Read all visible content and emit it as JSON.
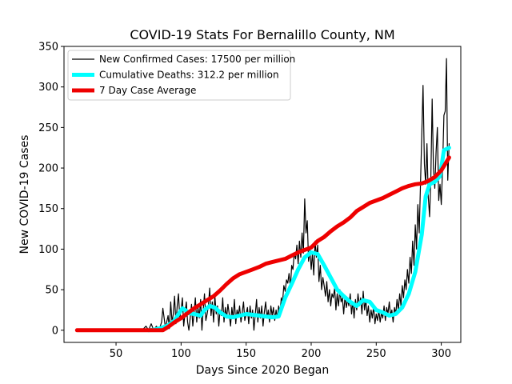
{
  "chart_data": {
    "type": "line",
    "title": "COVID-19 Stats For Bernalillo County, NM",
    "xlabel": "Days Since 2020 Began",
    "ylabel": "New COVID-19 Cases",
    "xlim": [
      10,
      315
    ],
    "ylim": [
      -15,
      350
    ],
    "xticks": [
      50,
      100,
      150,
      200,
      250,
      300
    ],
    "yticks": [
      0,
      50,
      100,
      150,
      200,
      250,
      300,
      350
    ],
    "legend_position": "upper-left",
    "grid": false,
    "series": [
      {
        "name": "New Confirmed Cases: 17500 per million",
        "color": "#000000",
        "style": "thin",
        "points": [
          [
            20,
            0
          ],
          [
            40,
            0
          ],
          [
            60,
            0
          ],
          [
            70,
            0
          ],
          [
            73,
            5
          ],
          [
            75,
            0
          ],
          [
            77,
            8
          ],
          [
            79,
            0
          ],
          [
            81,
            5
          ],
          [
            83,
            0
          ],
          [
            85,
            10
          ],
          [
            86,
            27
          ],
          [
            88,
            3
          ],
          [
            90,
            18
          ],
          [
            91,
            2
          ],
          [
            92,
            35
          ],
          [
            93,
            10
          ],
          [
            94,
            20
          ],
          [
            95,
            42
          ],
          [
            96,
            8
          ],
          [
            97,
            30
          ],
          [
            98,
            45
          ],
          [
            99,
            15
          ],
          [
            100,
            25
          ],
          [
            101,
            40
          ],
          [
            102,
            5
          ],
          [
            103,
            20
          ],
          [
            104,
            35
          ],
          [
            105,
            10
          ],
          [
            106,
            0
          ],
          [
            107,
            15
          ],
          [
            108,
            32
          ],
          [
            109,
            5
          ],
          [
            110,
            22
          ],
          [
            111,
            40
          ],
          [
            112,
            10
          ],
          [
            113,
            28
          ],
          [
            114,
            15
          ],
          [
            115,
            38
          ],
          [
            116,
            0
          ],
          [
            117,
            25
          ],
          [
            118,
            45
          ],
          [
            119,
            12
          ],
          [
            120,
            20
          ],
          [
            121,
            30
          ],
          [
            122,
            52
          ],
          [
            123,
            18
          ],
          [
            124,
            35
          ],
          [
            125,
            10
          ],
          [
            126,
            42
          ],
          [
            127,
            20
          ],
          [
            128,
            30
          ],
          [
            129,
            5
          ],
          [
            130,
            25
          ],
          [
            131,
            18
          ],
          [
            132,
            40
          ],
          [
            133,
            10
          ],
          [
            134,
            28
          ],
          [
            135,
            15
          ],
          [
            136,
            32
          ],
          [
            137,
            20
          ],
          [
            138,
            5
          ],
          [
            139,
            28
          ],
          [
            140,
            15
          ],
          [
            141,
            38
          ],
          [
            142,
            8
          ],
          [
            143,
            25
          ],
          [
            144,
            18
          ],
          [
            145,
            30
          ],
          [
            146,
            10
          ],
          [
            147,
            22
          ],
          [
            148,
            35
          ],
          [
            149,
            12
          ],
          [
            150,
            20
          ],
          [
            151,
            28
          ],
          [
            152,
            8
          ],
          [
            153,
            30
          ],
          [
            154,
            15
          ],
          [
            155,
            25
          ],
          [
            156,
            0
          ],
          [
            157,
            20
          ],
          [
            158,
            38
          ],
          [
            159,
            10
          ],
          [
            160,
            28
          ],
          [
            161,
            15
          ],
          [
            162,
            30
          ],
          [
            163,
            5
          ],
          [
            164,
            22
          ],
          [
            165,
            35
          ],
          [
            166,
            15
          ],
          [
            167,
            25
          ],
          [
            168,
            10
          ],
          [
            169,
            30
          ],
          [
            170,
            18
          ],
          [
            171,
            28
          ],
          [
            172,
            12
          ],
          [
            173,
            25
          ],
          [
            174,
            15
          ],
          [
            175,
            30
          ],
          [
            176,
            20
          ],
          [
            177,
            40
          ],
          [
            178,
            35
          ],
          [
            179,
            55
          ],
          [
            180,
            48
          ],
          [
            181,
            62
          ],
          [
            182,
            58
          ],
          [
            183,
            70
          ],
          [
            184,
            52
          ],
          [
            185,
            80
          ],
          [
            186,
            75
          ],
          [
            187,
            95
          ],
          [
            188,
            88
          ],
          [
            189,
            105
          ],
          [
            190,
            82
          ],
          [
            191,
            110
          ],
          [
            192,
            90
          ],
          [
            193,
            120
          ],
          [
            194,
            95
          ],
          [
            195,
            162
          ],
          [
            196,
            120
          ],
          [
            197,
            135
          ],
          [
            198,
            85
          ],
          [
            199,
            100
          ],
          [
            200,
            75
          ],
          [
            201,
            95
          ],
          [
            202,
            68
          ],
          [
            203,
            110
          ],
          [
            204,
            90
          ],
          [
            205,
            105
          ],
          [
            206,
            60
          ],
          [
            207,
            80
          ],
          [
            208,
            50
          ],
          [
            209,
            65
          ],
          [
            210,
            55
          ],
          [
            211,
            42
          ],
          [
            212,
            60
          ],
          [
            213,
            35
          ],
          [
            214,
            50
          ],
          [
            215,
            30
          ],
          [
            216,
            45
          ],
          [
            217,
            40
          ],
          [
            218,
            52
          ],
          [
            219,
            25
          ],
          [
            220,
            45
          ],
          [
            221,
            30
          ],
          [
            222,
            50
          ],
          [
            223,
            35
          ],
          [
            224,
            40
          ],
          [
            225,
            20
          ],
          [
            226,
            42
          ],
          [
            227,
            28
          ],
          [
            228,
            38
          ],
          [
            229,
            30
          ],
          [
            230,
            45
          ],
          [
            231,
            20
          ],
          [
            232,
            35
          ],
          [
            233,
            15
          ],
          [
            234,
            38
          ],
          [
            235,
            25
          ],
          [
            236,
            45
          ],
          [
            237,
            30
          ],
          [
            238,
            40
          ],
          [
            239,
            20
          ],
          [
            240,
            48
          ],
          [
            241,
            25
          ],
          [
            242,
            38
          ],
          [
            243,
            18
          ],
          [
            244,
            30
          ],
          [
            245,
            10
          ],
          [
            246,
            25
          ],
          [
            247,
            15
          ],
          [
            248,
            30
          ],
          [
            249,
            8
          ],
          [
            250,
            20
          ],
          [
            251,
            12
          ],
          [
            252,
            25
          ],
          [
            253,
            10
          ],
          [
            254,
            22
          ],
          [
            255,
            15
          ],
          [
            256,
            30
          ],
          [
            257,
            12
          ],
          [
            258,
            28
          ],
          [
            259,
            20
          ],
          [
            260,
            35
          ],
          [
            261,
            18
          ],
          [
            262,
            25
          ],
          [
            263,
            10
          ],
          [
            264,
            28
          ],
          [
            265,
            20
          ],
          [
            266,
            38
          ],
          [
            267,
            25
          ],
          [
            268,
            45
          ],
          [
            269,
            30
          ],
          [
            270,
            55
          ],
          [
            271,
            40
          ],
          [
            272,
            62
          ],
          [
            273,
            50
          ],
          [
            274,
            75
          ],
          [
            275,
            58
          ],
          [
            276,
            90
          ],
          [
            277,
            70
          ],
          [
            278,
            110
          ],
          [
            279,
            80
          ],
          [
            280,
            130
          ],
          [
            281,
            100
          ],
          [
            282,
            155
          ],
          [
            283,
            120
          ],
          [
            284,
            180
          ],
          [
            285,
            240
          ],
          [
            286,
            302
          ],
          [
            287,
            205
          ],
          [
            288,
            180
          ],
          [
            289,
            230
          ],
          [
            290,
            165
          ],
          [
            291,
            140
          ],
          [
            292,
            190
          ],
          [
            293,
            285
          ],
          [
            294,
            200
          ],
          [
            295,
            175
          ],
          [
            296,
            220
          ],
          [
            297,
            250
          ],
          [
            298,
            160
          ],
          [
            299,
            180
          ],
          [
            300,
            155
          ],
          [
            301,
            200
          ],
          [
            302,
            265
          ],
          [
            303,
            270
          ],
          [
            304,
            335
          ],
          [
            305,
            185
          ],
          [
            306,
            230
          ]
        ]
      },
      {
        "name": "Cumulative Deaths: 312.2 per million",
        "color": "#00ffff",
        "style": "thick",
        "points": [
          [
            75,
            0
          ],
          [
            80,
            1
          ],
          [
            85,
            3
          ],
          [
            90,
            6
          ],
          [
            95,
            12
          ],
          [
            98,
            20
          ],
          [
            101,
            27
          ],
          [
            104,
            24
          ],
          [
            106,
            21
          ],
          [
            110,
            20
          ],
          [
            115,
            18
          ],
          [
            118,
            25
          ],
          [
            122,
            30
          ],
          [
            126,
            28
          ],
          [
            130,
            22
          ],
          [
            135,
            17
          ],
          [
            140,
            16
          ],
          [
            145,
            18
          ],
          [
            150,
            20
          ],
          [
            155,
            19
          ],
          [
            160,
            18
          ],
          [
            165,
            17
          ],
          [
            170,
            16
          ],
          [
            175,
            17
          ],
          [
            180,
            40
          ],
          [
            185,
            57
          ],
          [
            190,
            75
          ],
          [
            195,
            90
          ],
          [
            200,
            96
          ],
          [
            205,
            94
          ],
          [
            210,
            80
          ],
          [
            215,
            65
          ],
          [
            220,
            50
          ],
          [
            225,
            42
          ],
          [
            230,
            35
          ],
          [
            235,
            30
          ],
          [
            240,
            37
          ],
          [
            245,
            35
          ],
          [
            250,
            25
          ],
          [
            255,
            22
          ],
          [
            260,
            18
          ],
          [
            265,
            20
          ],
          [
            270,
            28
          ],
          [
            275,
            45
          ],
          [
            280,
            72
          ],
          [
            285,
            118
          ],
          [
            288,
            165
          ],
          [
            291,
            180
          ],
          [
            295,
            183
          ],
          [
            299,
            190
          ],
          [
            302,
            222
          ],
          [
            306,
            225
          ]
        ]
      },
      {
        "name": "7 Day Case Average",
        "color": "#ee0000",
        "style": "thick",
        "points": [
          [
            20,
            0
          ],
          [
            40,
            0
          ],
          [
            60,
            0
          ],
          [
            80,
            0
          ],
          [
            86,
            0
          ],
          [
            90,
            4
          ],
          [
            95,
            10
          ],
          [
            100,
            15
          ],
          [
            105,
            21
          ],
          [
            110,
            27
          ],
          [
            115,
            32
          ],
          [
            120,
            37
          ],
          [
            125,
            42
          ],
          [
            130,
            49
          ],
          [
            135,
            57
          ],
          [
            140,
            64
          ],
          [
            145,
            69
          ],
          [
            150,
            72
          ],
          [
            155,
            75
          ],
          [
            160,
            78
          ],
          [
            165,
            82
          ],
          [
            170,
            84
          ],
          [
            175,
            86
          ],
          [
            180,
            88
          ],
          [
            185,
            92
          ],
          [
            190,
            96
          ],
          [
            195,
            99
          ],
          [
            200,
            102
          ],
          [
            205,
            110
          ],
          [
            210,
            115
          ],
          [
            215,
            122
          ],
          [
            220,
            128
          ],
          [
            225,
            133
          ],
          [
            230,
            139
          ],
          [
            235,
            147
          ],
          [
            240,
            152
          ],
          [
            245,
            157
          ],
          [
            250,
            160
          ],
          [
            255,
            163
          ],
          [
            260,
            167
          ],
          [
            265,
            171
          ],
          [
            270,
            175
          ],
          [
            275,
            178
          ],
          [
            280,
            180
          ],
          [
            285,
            181
          ],
          [
            290,
            184
          ],
          [
            295,
            189
          ],
          [
            300,
            197
          ],
          [
            303,
            205
          ],
          [
            306,
            213
          ]
        ]
      }
    ]
  }
}
